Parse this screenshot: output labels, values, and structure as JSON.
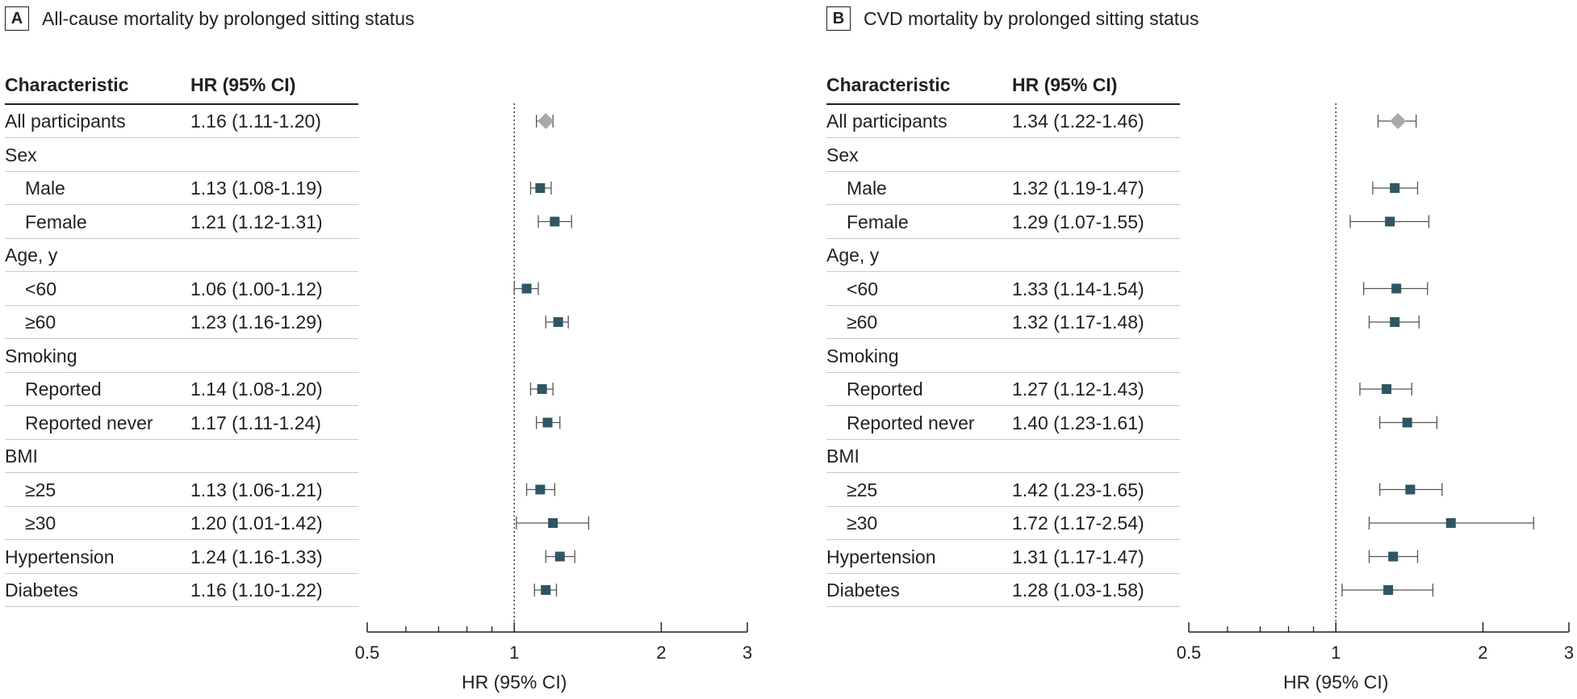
{
  "table_header": {
    "characteristic": "Characteristic",
    "hr": "HR (95% CI)"
  },
  "chart_data": [
    {
      "type": "forest",
      "panel": "A",
      "title": "All-cause mortality by prolonged sitting status",
      "xlabel": "HR (95% CI)",
      "xscale": "log",
      "xlim": [
        0.5,
        3
      ],
      "xticks": [
        0.5,
        1,
        2,
        3
      ],
      "reference_line": 1,
      "rows": [
        {
          "label": "All participants",
          "indent": false,
          "hr_text": "1.16 (1.11-1.20)",
          "hr": 1.16,
          "lo": 1.11,
          "hi": 1.2,
          "marker": "diamond"
        },
        {
          "label": "Sex",
          "indent": false,
          "header": true
        },
        {
          "label": "Male",
          "indent": true,
          "hr_text": "1.13 (1.08-1.19)",
          "hr": 1.13,
          "lo": 1.08,
          "hi": 1.19,
          "marker": "square"
        },
        {
          "label": "Female",
          "indent": true,
          "hr_text": "1.21 (1.12-1.31)",
          "hr": 1.21,
          "lo": 1.12,
          "hi": 1.31,
          "marker": "square"
        },
        {
          "label": "Age, y",
          "indent": false,
          "header": true
        },
        {
          "label": "<60",
          "indent": true,
          "hr_text": "1.06 (1.00-1.12)",
          "hr": 1.06,
          "lo": 1.0,
          "hi": 1.12,
          "marker": "square"
        },
        {
          "label": "≥60",
          "indent": true,
          "hr_text": "1.23 (1.16-1.29)",
          "hr": 1.23,
          "lo": 1.16,
          "hi": 1.29,
          "marker": "square"
        },
        {
          "label": "Smoking",
          "indent": false,
          "header": true
        },
        {
          "label": "Reported",
          "indent": true,
          "hr_text": "1.14 (1.08-1.20)",
          "hr": 1.14,
          "lo": 1.08,
          "hi": 1.2,
          "marker": "square"
        },
        {
          "label": "Reported never",
          "indent": true,
          "hr_text": "1.17 (1.11-1.24)",
          "hr": 1.17,
          "lo": 1.11,
          "hi": 1.24,
          "marker": "square"
        },
        {
          "label": "BMI",
          "indent": false,
          "header": true
        },
        {
          "label": "≥25",
          "indent": true,
          "hr_text": "1.13 (1.06-1.21)",
          "hr": 1.13,
          "lo": 1.06,
          "hi": 1.21,
          "marker": "square"
        },
        {
          "label": "≥30",
          "indent": true,
          "hr_text": "1.20 (1.01-1.42)",
          "hr": 1.2,
          "lo": 1.01,
          "hi": 1.42,
          "marker": "square"
        },
        {
          "label": "Hypertension",
          "indent": false,
          "hr_text": "1.24 (1.16-1.33)",
          "hr": 1.24,
          "lo": 1.16,
          "hi": 1.33,
          "marker": "square"
        },
        {
          "label": "Diabetes",
          "indent": false,
          "hr_text": "1.16 (1.10-1.22)",
          "hr": 1.16,
          "lo": 1.1,
          "hi": 1.22,
          "marker": "square"
        }
      ]
    },
    {
      "type": "forest",
      "panel": "B",
      "title": "CVD mortality by prolonged sitting status",
      "xlabel": "HR (95% CI)",
      "xscale": "log",
      "xlim": [
        0.5,
        3
      ],
      "xticks": [
        0.5,
        1,
        2,
        3
      ],
      "reference_line": 1,
      "rows": [
        {
          "label": "All participants",
          "indent": false,
          "hr_text": "1.34 (1.22-1.46)",
          "hr": 1.34,
          "lo": 1.22,
          "hi": 1.46,
          "marker": "diamond"
        },
        {
          "label": "Sex",
          "indent": false,
          "header": true
        },
        {
          "label": "Male",
          "indent": true,
          "hr_text": "1.32 (1.19-1.47)",
          "hr": 1.32,
          "lo": 1.19,
          "hi": 1.47,
          "marker": "square"
        },
        {
          "label": "Female",
          "indent": true,
          "hr_text": "1.29 (1.07-1.55)",
          "hr": 1.29,
          "lo": 1.07,
          "hi": 1.55,
          "marker": "square"
        },
        {
          "label": "Age, y",
          "indent": false,
          "header": true
        },
        {
          "label": "<60",
          "indent": true,
          "hr_text": "1.33 (1.14-1.54)",
          "hr": 1.33,
          "lo": 1.14,
          "hi": 1.54,
          "marker": "square"
        },
        {
          "label": "≥60",
          "indent": true,
          "hr_text": "1.32 (1.17-1.48)",
          "hr": 1.32,
          "lo": 1.17,
          "hi": 1.48,
          "marker": "square"
        },
        {
          "label": "Smoking",
          "indent": false,
          "header": true
        },
        {
          "label": "Reported",
          "indent": true,
          "hr_text": "1.27 (1.12-1.43)",
          "hr": 1.27,
          "lo": 1.12,
          "hi": 1.43,
          "marker": "square"
        },
        {
          "label": "Reported never",
          "indent": true,
          "hr_text": "1.40 (1.23-1.61)",
          "hr": 1.4,
          "lo": 1.23,
          "hi": 1.61,
          "marker": "square"
        },
        {
          "label": "BMI",
          "indent": false,
          "header": true
        },
        {
          "label": "≥25",
          "indent": true,
          "hr_text": "1.42 (1.23-1.65)",
          "hr": 1.42,
          "lo": 1.23,
          "hi": 1.65,
          "marker": "square"
        },
        {
          "label": "≥30",
          "indent": true,
          "hr_text": "1.72 (1.17-2.54)",
          "hr": 1.72,
          "lo": 1.17,
          "hi": 2.54,
          "marker": "square"
        },
        {
          "label": "Hypertension",
          "indent": false,
          "hr_text": "1.31 (1.17-1.47)",
          "hr": 1.31,
          "lo": 1.17,
          "hi": 1.47,
          "marker": "square"
        },
        {
          "label": "Diabetes",
          "indent": false,
          "hr_text": "1.28 (1.03-1.58)",
          "hr": 1.28,
          "lo": 1.03,
          "hi": 1.58,
          "marker": "square"
        }
      ]
    }
  ],
  "colors": {
    "marker": "#2e5665",
    "overall_marker": "#a7a9ac",
    "text": "#231f20",
    "ci_line": "#555555"
  }
}
